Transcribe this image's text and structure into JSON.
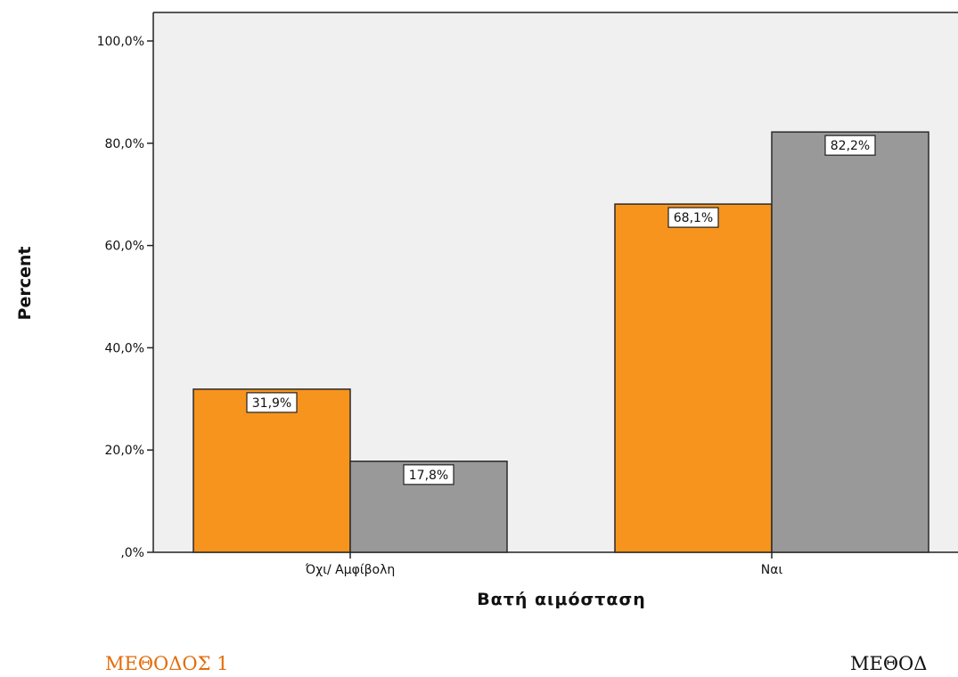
{
  "chart_data": {
    "type": "bar",
    "ylabel": "Percent",
    "xlabel": "Βατή αιμόσταση",
    "categories": [
      "Όχι/ Αμφίβολη",
      "Ναι"
    ],
    "ylim": [
      0,
      100
    ],
    "yticks": [
      "100,0%",
      "80,0%",
      "60,0%",
      "40,0%",
      "20,0%",
      ",0%"
    ],
    "ytick_values": [
      100,
      80,
      60,
      40,
      20,
      0
    ],
    "series": [
      {
        "values": [
          31.9,
          68.1
        ],
        "labels": [
          "31,9%",
          "68,1%"
        ],
        "color": "#f7941d"
      },
      {
        "values": [
          17.8,
          82.2
        ],
        "labels": [
          "17,8%",
          "82,2%"
        ],
        "color": "#999999"
      }
    ],
    "plot_background": "#f0f0f0",
    "grid": false,
    "legend": "none"
  },
  "captions": {
    "left": "ΜΕΘΟΔΟΣ 1",
    "left_color": "#e36c0a",
    "right": "ΜΕΘΟΔ",
    "right_color": "#111111"
  }
}
